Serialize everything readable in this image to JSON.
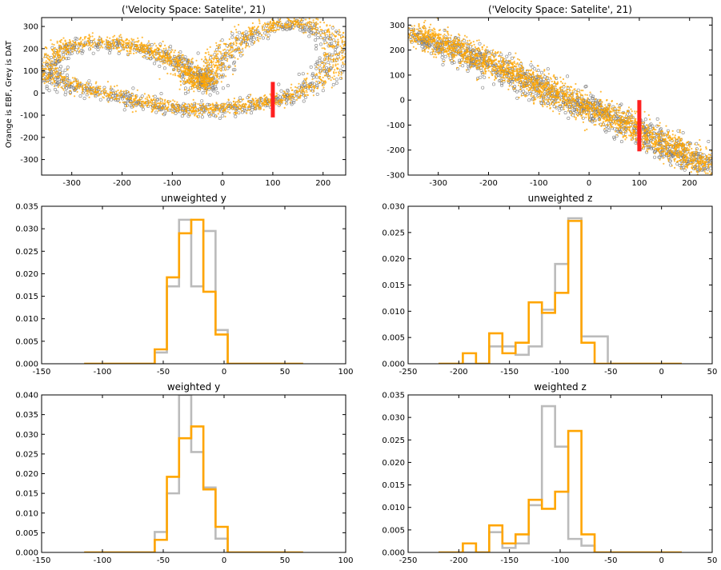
{
  "figure": {
    "ylabel_shared": "Orange is EBF, Grey is DAT"
  },
  "colors": {
    "orange": "#ffa500",
    "grey": "#b4b4b4",
    "scatter_grey_edge": "#7f7f7f",
    "red_marker": "#ff2020"
  },
  "chart_data": [
    {
      "id": "vy-scatter",
      "type": "scatter",
      "title": "('Velocity Space: Satelite', 21)",
      "xlabel": "",
      "ylabel": "Orange is EBF, Grey is DAT",
      "xlim": [
        -360,
        245
      ],
      "ylim": [
        -370,
        340
      ],
      "xticks": [
        -300,
        -200,
        -100,
        0,
        100,
        200
      ],
      "yticks": [
        -300,
        -200,
        -100,
        0,
        100,
        200,
        300
      ],
      "series": [
        {
          "color": "orange",
          "shape": "loop",
          "path": [
            [
              -350,
              120
            ],
            [
              -330,
              190
            ],
            [
              -290,
              225
            ],
            [
              -240,
              232
            ],
            [
              -190,
              220
            ],
            [
              -150,
              200
            ],
            [
              -115,
              170
            ],
            [
              -85,
              130
            ],
            [
              -65,
              90
            ],
            [
              -50,
              55
            ],
            [
              -40,
              30
            ],
            [
              -30,
              80
            ],
            [
              -10,
              150
            ],
            [
              20,
              220
            ],
            [
              60,
              280
            ],
            [
              120,
              318
            ],
            [
              180,
              308
            ],
            [
              225,
              250
            ],
            [
              230,
              150
            ],
            [
              200,
              60
            ],
            [
              150,
              -5
            ],
            [
              100,
              -30
            ],
            [
              60,
              -50
            ],
            [
              20,
              -65
            ],
            [
              -30,
              -72
            ],
            [
              -80,
              -70
            ],
            [
              -130,
              -55
            ],
            [
              -180,
              -30
            ],
            [
              -230,
              0
            ],
            [
              -290,
              30
            ],
            [
              -340,
              70
            ],
            [
              -350,
              120
            ]
          ]
        },
        {
          "color": "grey",
          "shape": "loop",
          "path": [
            [
              -345,
              115
            ],
            [
              -320,
              185
            ],
            [
              -280,
              215
            ],
            [
              -230,
              222
            ],
            [
              -180,
              212
            ],
            [
              -140,
              190
            ],
            [
              -105,
              160
            ],
            [
              -80,
              120
            ],
            [
              -60,
              80
            ],
            [
              -45,
              50
            ],
            [
              -35,
              25
            ],
            [
              -25,
              75
            ],
            [
              -5,
              145
            ],
            [
              25,
              215
            ],
            [
              65,
              272
            ],
            [
              120,
              305
            ],
            [
              175,
              300
            ],
            [
              215,
              240
            ],
            [
              220,
              145
            ],
            [
              190,
              55
            ],
            [
              145,
              -10
            ],
            [
              100,
              -35
            ],
            [
              55,
              -55
            ],
            [
              15,
              -68
            ],
            [
              -35,
              -76
            ],
            [
              -85,
              -72
            ],
            [
              -135,
              -58
            ],
            [
              -185,
              -33
            ],
            [
              -235,
              -5
            ],
            [
              -295,
              25
            ],
            [
              -340,
              65
            ],
            [
              -345,
              115
            ]
          ]
        }
      ],
      "marker": {
        "x": 100,
        "y_range": [
          -110,
          50
        ],
        "color": "red_marker"
      }
    },
    {
      "id": "vz-scatter",
      "type": "scatter",
      "title": "('Velocity Space: Satelite', 21)",
      "xlabel": "",
      "ylabel": "",
      "xlim": [
        -360,
        245
      ],
      "ylim": [
        -300,
        330
      ],
      "xticks": [
        -300,
        -200,
        -100,
        0,
        100,
        200
      ],
      "yticks": [
        -300,
        -200,
        -100,
        0,
        100,
        200,
        300
      ],
      "series": [
        {
          "color": "orange",
          "shape": "band",
          "path": [
            [
              -355,
              270
            ],
            [
              -300,
              235
            ],
            [
              -250,
              195
            ],
            [
              -200,
              150
            ],
            [
              -150,
              105
            ],
            [
              -100,
              55
            ],
            [
              -50,
              10
            ],
            [
              0,
              -30
            ],
            [
              50,
              -75
            ],
            [
              100,
              -120
            ],
            [
              150,
              -175
            ],
            [
              200,
              -225
            ],
            [
              240,
              -265
            ]
          ]
        },
        {
          "color": "grey",
          "shape": "band",
          "path": [
            [
              -350,
              260
            ],
            [
              -300,
              225
            ],
            [
              -250,
              185
            ],
            [
              -200,
              145
            ],
            [
              -150,
              100
            ],
            [
              -100,
              50
            ],
            [
              -50,
              5
            ],
            [
              0,
              -35
            ],
            [
              50,
              -80
            ],
            [
              100,
              -125
            ],
            [
              150,
              -180
            ],
            [
              200,
              -230
            ],
            [
              235,
              -260
            ]
          ]
        }
      ],
      "marker": {
        "x": 100,
        "y_range": [
          -205,
          0
        ],
        "color": "red_marker"
      }
    },
    {
      "id": "unweighted-y",
      "type": "histogram",
      "title": "unweighted y",
      "xlabel": "",
      "ylabel": "",
      "xlim": [
        -150,
        100
      ],
      "ylim": [
        0,
        0.035
      ],
      "xticks": [
        -150,
        -100,
        -50,
        0,
        50,
        100
      ],
      "yticks": [
        0,
        0.005,
        0.01,
        0.015,
        0.02,
        0.025,
        0.03,
        0.035
      ],
      "ytick_labels": [
        "0.000",
        "0.005",
        "0.010",
        "0.015",
        "0.020",
        "0.025",
        "0.030",
        "0.035"
      ],
      "range": [
        -115,
        65
      ],
      "series": [
        {
          "color": "grey",
          "edges": [
            -57,
            -47,
            -37,
            -27,
            -17,
            -7,
            3
          ],
          "values": [
            0.0025,
            0.0172,
            0.032,
            0.0172,
            0.0295,
            0.0075
          ]
        },
        {
          "color": "orange",
          "edges": [
            -57,
            -47,
            -37,
            -27,
            -17,
            -7,
            3
          ],
          "values": [
            0.0032,
            0.0192,
            0.029,
            0.032,
            0.016,
            0.0065
          ]
        }
      ]
    },
    {
      "id": "unweighted-z",
      "type": "histogram",
      "title": "unweighted z",
      "xlabel": "",
      "ylabel": "",
      "xlim": [
        -250,
        50
      ],
      "ylim": [
        0,
        0.03
      ],
      "xticks": [
        -250,
        -200,
        -150,
        -100,
        -50,
        0,
        50
      ],
      "yticks": [
        0,
        0.005,
        0.01,
        0.015,
        0.02,
        0.025,
        0.03
      ],
      "ytick_labels": [
        "0.000",
        "0.005",
        "0.010",
        "0.015",
        "0.020",
        "0.025",
        "0.030"
      ],
      "range": [
        -220,
        20
      ],
      "series": [
        {
          "color": "grey",
          "edges": [
            -183,
            -170,
            -157,
            -144,
            -131,
            -118,
            -105,
            -92,
            -79,
            -66,
            -53
          ],
          "values": [
            0.0,
            0.0033,
            0.0033,
            0.0017,
            0.0033,
            0.0103,
            0.019,
            0.0277,
            0.0052,
            0.0052
          ]
        },
        {
          "color": "orange",
          "edges": [
            -196,
            -183,
            -170,
            -157,
            -144,
            -131,
            -118,
            -105,
            -92,
            -79,
            -66
          ],
          "values": [
            0.002,
            0.0,
            0.0058,
            0.002,
            0.004,
            0.0117,
            0.0097,
            0.0135,
            0.0272,
            0.004
          ]
        }
      ]
    },
    {
      "id": "weighted-y",
      "type": "histogram",
      "title": "weighted y",
      "xlabel": "",
      "ylabel": "",
      "xlim": [
        -150,
        100
      ],
      "ylim": [
        0,
        0.04
      ],
      "xticks": [
        -150,
        -100,
        -50,
        0,
        50,
        100
      ],
      "yticks": [
        0,
        0.005,
        0.01,
        0.015,
        0.02,
        0.025,
        0.03,
        0.035,
        0.04
      ],
      "ytick_labels": [
        "0.000",
        "0.005",
        "0.010",
        "0.015",
        "0.020",
        "0.025",
        "0.030",
        "0.035",
        "0.040"
      ],
      "range": [
        -115,
        65
      ],
      "series": [
        {
          "color": "grey",
          "edges": [
            -57,
            -47,
            -37,
            -27,
            -17,
            -7,
            3
          ],
          "values": [
            0.0052,
            0.015,
            0.04,
            0.0255,
            0.0165,
            0.0035
          ]
        },
        {
          "color": "orange",
          "edges": [
            -57,
            -47,
            -37,
            -27,
            -17,
            -7,
            3
          ],
          "values": [
            0.0032,
            0.0192,
            0.029,
            0.032,
            0.016,
            0.0065
          ]
        }
      ]
    },
    {
      "id": "weighted-z",
      "type": "histogram",
      "title": "weighted z",
      "xlabel": "",
      "ylabel": "",
      "xlim": [
        -250,
        50
      ],
      "ylim": [
        0,
        0.035
      ],
      "xticks": [
        -250,
        -200,
        -150,
        -100,
        -50,
        0,
        50
      ],
      "yticks": [
        0,
        0.005,
        0.01,
        0.015,
        0.02,
        0.025,
        0.03,
        0.035
      ],
      "ytick_labels": [
        "0.000",
        "0.005",
        "0.010",
        "0.015",
        "0.020",
        "0.025",
        "0.030",
        "0.035"
      ],
      "range": [
        -220,
        20
      ],
      "series": [
        {
          "color": "grey",
          "edges": [
            -183,
            -170,
            -157,
            -144,
            -131,
            -118,
            -105,
            -92,
            -79,
            -66,
            -53
          ],
          "values": [
            0.0,
            0.0045,
            0.001,
            0.002,
            0.0105,
            0.0325,
            0.0235,
            0.003,
            0.0015,
            0.0
          ]
        },
        {
          "color": "orange",
          "edges": [
            -196,
            -183,
            -170,
            -157,
            -144,
            -131,
            -118,
            -105,
            -92,
            -79,
            -66
          ],
          "values": [
            0.002,
            0.0,
            0.006,
            0.002,
            0.004,
            0.0117,
            0.0097,
            0.0135,
            0.027,
            0.004
          ]
        }
      ]
    }
  ]
}
